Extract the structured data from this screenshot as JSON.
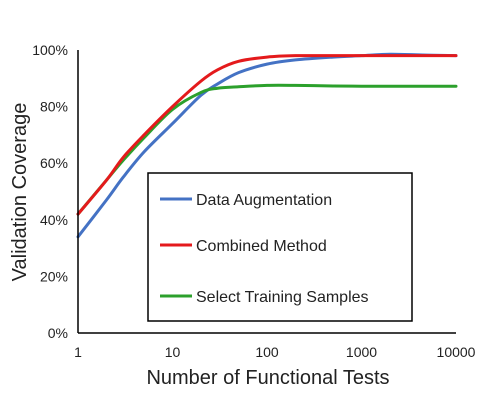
{
  "chart_data": {
    "type": "line",
    "title": "",
    "xlabel": "Number of Functional Tests",
    "ylabel": "Validation Coverage",
    "x_scale": "log",
    "xlim": [
      1,
      10000
    ],
    "ylim": [
      0,
      100
    ],
    "x_ticks": [
      1,
      10,
      100,
      1000,
      10000
    ],
    "x_tick_labels": [
      "1",
      "10",
      "100",
      "1000",
      "10000"
    ],
    "y_ticks": [
      0,
      20,
      40,
      60,
      80,
      100
    ],
    "y_tick_labels": [
      "0%",
      "20%",
      "40%",
      "60%",
      "80%",
      "100%"
    ],
    "grid": false,
    "legend_position": "center",
    "series": [
      {
        "name": "Data Augmentation",
        "color": "#4472C4",
        "x": [
          1,
          2,
          3,
          5,
          10,
          20,
          30,
          50,
          100,
          200,
          500,
          1000,
          2000,
          5000,
          10000
        ],
        "y": [
          34,
          47,
          55,
          64,
          74,
          84,
          88,
          92,
          95,
          96.5,
          97.5,
          98,
          98.5,
          98.2,
          98
        ]
      },
      {
        "name": "Combined Method",
        "color": "#E41A1C",
        "x": [
          1,
          2,
          3,
          5,
          10,
          20,
          30,
          50,
          100,
          200,
          500,
          1000,
          2000,
          5000,
          10000
        ],
        "y": [
          42,
          54,
          62,
          70,
          80,
          89,
          93,
          96,
          97.5,
          98,
          98,
          98,
          98,
          98,
          98
        ]
      },
      {
        "name": "Select Training Samples",
        "color": "#2CA02C",
        "x": [
          1,
          2,
          3,
          5,
          10,
          20,
          30,
          50,
          100,
          200,
          500,
          1000,
          2000,
          5000,
          10000
        ],
        "y": [
          42,
          54,
          61,
          69,
          79,
          85,
          86.5,
          87,
          87.5,
          87.5,
          87.3,
          87.2,
          87.2,
          87.2,
          87.2
        ]
      }
    ]
  }
}
